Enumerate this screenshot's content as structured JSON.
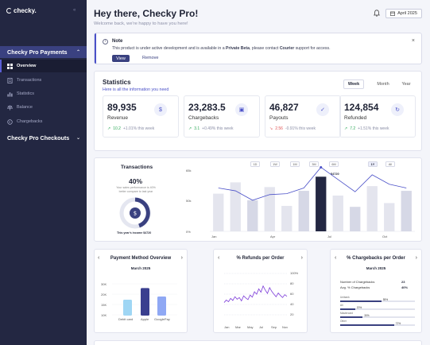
{
  "app": {
    "logo_text": "checky.",
    "collapse_glyph": "«"
  },
  "sidebar": {
    "groups": [
      {
        "label": "Checky Pro Payments",
        "expanded": true
      },
      {
        "label": "Checky Pro Checkouts",
        "expanded": false
      }
    ],
    "items": [
      {
        "label": "Overview",
        "icon": "grid-icon",
        "active": true
      },
      {
        "label": "Transactions",
        "icon": "receipt-icon",
        "active": false
      },
      {
        "label": "Statistics",
        "icon": "bar-chart-icon",
        "active": false
      },
      {
        "label": "Balance",
        "icon": "scale-icon",
        "active": false
      },
      {
        "label": "Chargebacks",
        "icon": "undo-icon",
        "active": false
      }
    ]
  },
  "header": {
    "title": "Hey there, Checky Pro!",
    "subtitle": "Welcome back, we're happy to have you here!",
    "date_button": "April 2025"
  },
  "note": {
    "title": "Note",
    "text_1": "This product is under active development and is available in a ",
    "text_bold_1": "Private Beta",
    "text_2": ", please contact ",
    "text_bold_2": "Courier",
    "text_3": " support for access.",
    "view_label": "View",
    "remove_label": "Remove",
    "close_glyph": "×"
  },
  "statistics": {
    "title": "Statistics",
    "subtitle": "Here is all the information you need",
    "periods": [
      "Week",
      "Month",
      "Year"
    ],
    "active_period": "Week",
    "kpis": [
      {
        "value": "89,935",
        "label": "Revenue",
        "icon": "money-bag-icon",
        "trend_value": "10.2",
        "trend_note": "+1.01% this week",
        "direction": "up"
      },
      {
        "value": "23,283.5",
        "label": "Chargebacks",
        "icon": "wallet-icon",
        "trend_value": "3.1",
        "trend_note": "+0.49% this week",
        "direction": "up"
      },
      {
        "value": "46,827",
        "label": "Payouts",
        "icon": "check-badge-icon",
        "trend_value": "2.56",
        "trend_note": "-0.91% this week",
        "direction": "down"
      },
      {
        "value": "124,854",
        "label": "Refunded",
        "icon": "refresh-icon",
        "trend_value": "7.2",
        "trend_note": "+1.51% this week",
        "direction": "up"
      }
    ]
  },
  "transactions": {
    "title": "Transactions",
    "percent": "40%",
    "description": "Your sales performance is 40% better compare to last year",
    "income_label": "This year's income $4720",
    "ranges": [
      "1D",
      "1W",
      "1M",
      "3M",
      "6M",
      "1Y",
      "All"
    ],
    "active_range": "1Y",
    "bar_label": "$4720"
  },
  "chart_data": [
    {
      "type": "bar",
      "title": "Transactions",
      "xlabel": "",
      "ylabel": "",
      "categories": [
        "Jan",
        "",
        "",
        "Apr",
        "",
        "",
        "Jul",
        "",
        "",
        "Oct",
        "",
        ""
      ],
      "values": [
        40,
        52,
        33,
        47,
        27,
        43,
        58,
        38,
        26,
        48,
        30,
        43
      ],
      "line_values": [
        46,
        43,
        33,
        39,
        40,
        46,
        68,
        55,
        42,
        60,
        50,
        46
      ],
      "highlight_index": 6,
      "ylim": [
        0,
        65
      ],
      "ytick_labels": [
        "0%",
        "50k",
        "65k"
      ]
    },
    {
      "type": "bar",
      "title": "Payment Method Overview",
      "subtitle": "March 2025",
      "categories": [
        "Debit card",
        "Apple",
        "GooglePay"
      ],
      "values": [
        15,
        26,
        18
      ],
      "ylim": [
        0,
        30
      ],
      "ytick_labels": [
        "10K",
        "15K",
        "20K",
        "30K"
      ],
      "colors": [
        "#9fd6f4",
        "#3a3f8f",
        "#8fa8f4"
      ]
    },
    {
      "type": "line",
      "title": "% Refunds per Order",
      "x": [
        "Jan",
        "Feb",
        "Mar",
        "Apr",
        "May",
        "Jun",
        "Jul",
        "Aug",
        "Sep",
        "Oct",
        "Nov",
        "Dec",
        "Jan",
        "Feb",
        "Mar",
        "Apr",
        "May",
        "Jun",
        "Jul",
        "Aug",
        "Sep",
        "Oct",
        "Nov",
        "Dec",
        "Jan",
        "Feb",
        "Mar",
        "Apr",
        "May",
        "Jun"
      ],
      "values": [
        22,
        28,
        24,
        32,
        27,
        36,
        30,
        34,
        26,
        38,
        33,
        29,
        40,
        35,
        48,
        42,
        55,
        47,
        62,
        52,
        44,
        58,
        49,
        42,
        36,
        45,
        39,
        34,
        41,
        37
      ],
      "xtick_labels": [
        "Jan",
        "Mar",
        "May",
        "Jul",
        "Sep",
        "Nov"
      ],
      "ytick_labels": [
        "20",
        "40",
        "60",
        "80",
        "100%"
      ],
      "ylim": [
        0,
        100
      ],
      "color": "#7d3cd9"
    },
    {
      "type": "bar",
      "title": "% Chargebacks per Order",
      "subtitle": "March 2025",
      "stats": [
        {
          "label": "Number of Chargebacks",
          "value": "23"
        },
        {
          "label": "Avg. % Chargebacks",
          "value": "40%"
        }
      ],
      "categories": [
        "Unibank",
        "Ali",
        "Mastercard",
        "Other"
      ],
      "values": [
        0.55,
        0.2,
        0.3,
        0.72
      ]
    }
  ],
  "payment_overview": {
    "title": "Payment Method Overview",
    "month": "March 2025",
    "nav_prev": "‹",
    "nav_next": "›"
  },
  "refunds": {
    "title": "% Refunds per Order",
    "nav_prev": "‹",
    "nav_next": "›"
  },
  "chargebacks": {
    "title": "% Chargebacks per Order",
    "month": "March 2025",
    "nav_prev": "‹",
    "nav_next": "›",
    "row1_label": "Number of Chargebacks",
    "row1_value": "23",
    "row2_label": "Avg. % Chargebacks",
    "row2_value": "40%",
    "bars": [
      {
        "label": "Unibank",
        "pct_text": "55%"
      },
      {
        "label": "Ali",
        "pct_text": "20%"
      },
      {
        "label": "Mastercard",
        "pct_text": "30%"
      },
      {
        "label": "Other",
        "pct_text": "72%"
      }
    ]
  }
}
